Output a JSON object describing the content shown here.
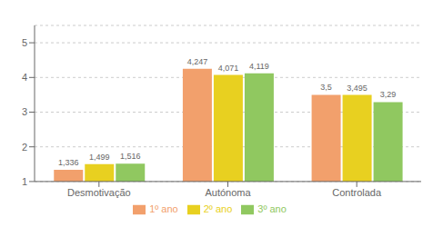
{
  "chart_data": {
    "type": "bar",
    "categories": [
      "Desmotivação",
      "Autónoma",
      "Controlada"
    ],
    "series": [
      {
        "name": "1º ano",
        "color": "#F2A06C",
        "values": [
          1.336,
          4.247,
          3.5
        ],
        "value_labels": [
          "1,336",
          "4,247",
          "3,5"
        ]
      },
      {
        "name": "2º ano",
        "color": "#E8D020",
        "values": [
          1.499,
          4.071,
          3.495
        ],
        "value_labels": [
          "1,499",
          "4,071",
          "3,495"
        ]
      },
      {
        "name": "3º ano",
        "color": "#90C860",
        "values": [
          1.516,
          4.119,
          3.29
        ],
        "value_labels": [
          "1,516",
          "4,119",
          "3,29"
        ]
      }
    ],
    "ylim": [
      1,
      5.5
    ],
    "yticks": [
      1,
      2,
      3,
      4,
      5
    ],
    "grid": true,
    "legend": "bottom",
    "data_labels": true
  }
}
